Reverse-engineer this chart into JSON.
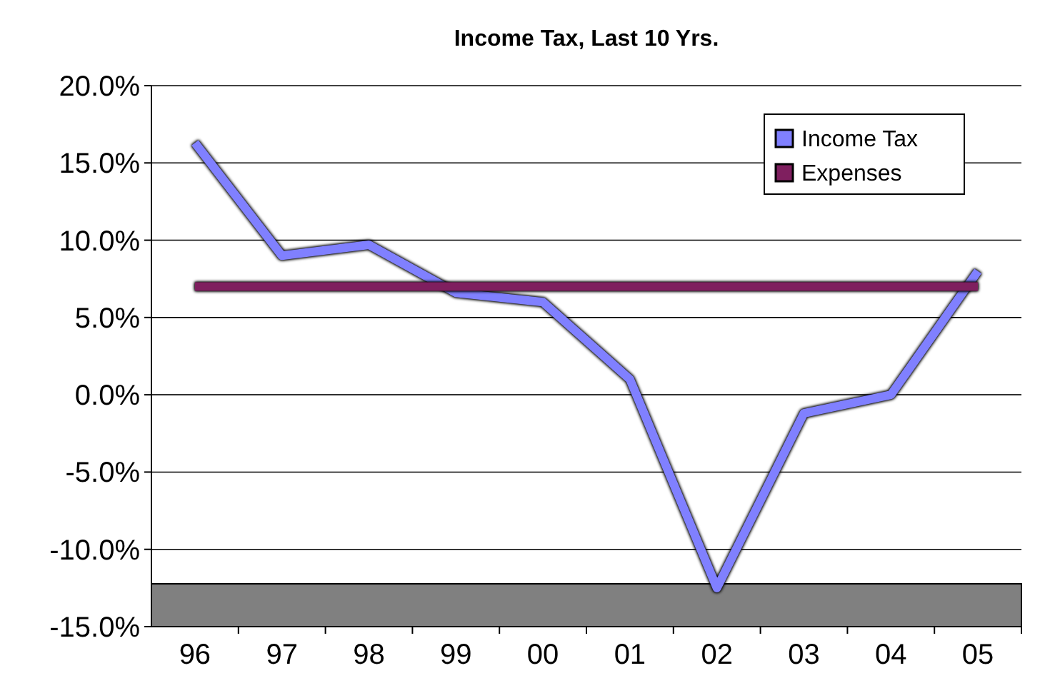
{
  "chart_data": {
    "type": "line",
    "title": "Income Tax, Last 10 Yrs.",
    "categories": [
      "96",
      "97",
      "98",
      "99",
      "00",
      "01",
      "02",
      "03",
      "04",
      "05"
    ],
    "series": [
      {
        "name": "Income Tax",
        "color": "#8080ff",
        "values": [
          16.3,
          9.0,
          9.7,
          6.6,
          6.0,
          1.0,
          -12.5,
          -1.2,
          0.0,
          8.0
        ]
      },
      {
        "name": "Expenses",
        "color": "#7f1f5f",
        "values": [
          7.0,
          7.0,
          7.0,
          7.0,
          7.0,
          7.0,
          7.0,
          7.0,
          7.0,
          7.0
        ]
      }
    ],
    "ylim": [
      -15,
      20
    ],
    "yticks": [
      {
        "value": -15,
        "label": "-15.0%"
      },
      {
        "value": -10,
        "label": "-10.0%"
      },
      {
        "value": -5,
        "label": "-5.0%"
      },
      {
        "value": 0,
        "label": "0.0%"
      },
      {
        "value": 5,
        "label": "5.0%"
      },
      {
        "value": 10,
        "label": "10.0%"
      },
      {
        "value": 15,
        "label": "15.0%"
      },
      {
        "value": 20,
        "label": "20.0%"
      }
    ],
    "grid": "y",
    "legend": "top right",
    "marker": "none",
    "line_style": "solid"
  }
}
